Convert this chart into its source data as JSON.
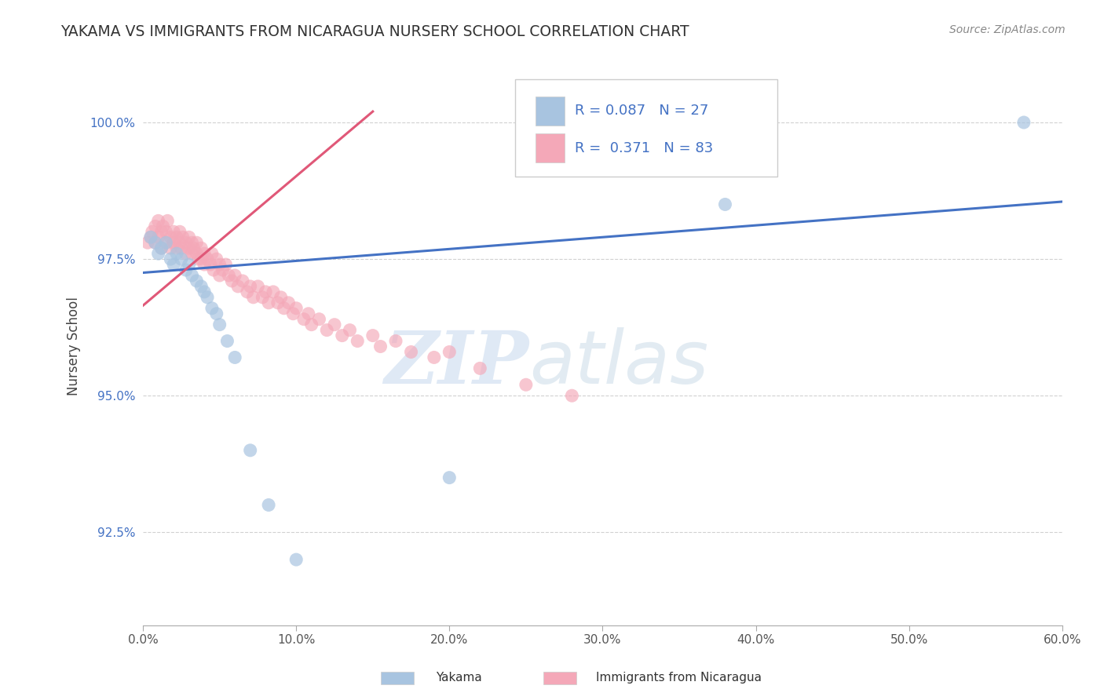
{
  "title": "YAKAMA VS IMMIGRANTS FROM NICARAGUA NURSERY SCHOOL CORRELATION CHART",
  "source": "Source: ZipAtlas.com",
  "ylabel": "Nursery School",
  "legend_label_1": "Yakama",
  "legend_label_2": "Immigrants from Nicaragua",
  "R1": 0.087,
  "N1": 27,
  "R2": 0.371,
  "N2": 83,
  "color1": "#a8c4e0",
  "color2": "#f4a8b8",
  "line_color1": "#4472c4",
  "line_color2": "#e05878",
  "xlim": [
    0.0,
    0.6
  ],
  "ylim": [
    0.908,
    1.01
  ],
  "xticks": [
    0.0,
    0.1,
    0.2,
    0.3,
    0.4,
    0.5,
    0.6
  ],
  "xticklabels": [
    "0.0%",
    "10.0%",
    "20.0%",
    "30.0%",
    "40.0%",
    "50.0%",
    "60.0%"
  ],
  "yticks": [
    0.925,
    0.95,
    0.975,
    1.0
  ],
  "yticklabels": [
    "92.5%",
    "95.0%",
    "97.5%",
    "100.0%"
  ],
  "watermark_zip": "ZIP",
  "watermark_atlas": "atlas",
  "background_color": "#ffffff",
  "scatter1_x": [
    0.005,
    0.008,
    0.01,
    0.012,
    0.015,
    0.018,
    0.02,
    0.022,
    0.025,
    0.028,
    0.03,
    0.032,
    0.035,
    0.038,
    0.04,
    0.042,
    0.045,
    0.048,
    0.05,
    0.055,
    0.06,
    0.07,
    0.082,
    0.1,
    0.2,
    0.38,
    0.575
  ],
  "scatter1_y": [
    0.979,
    0.978,
    0.976,
    0.977,
    0.978,
    0.975,
    0.974,
    0.976,
    0.975,
    0.973,
    0.974,
    0.972,
    0.971,
    0.97,
    0.969,
    0.968,
    0.966,
    0.965,
    0.963,
    0.96,
    0.957,
    0.94,
    0.93,
    0.92,
    0.935,
    0.985,
    1.0
  ],
  "scatter2_x": [
    0.003,
    0.005,
    0.006,
    0.008,
    0.008,
    0.01,
    0.01,
    0.012,
    0.012,
    0.013,
    0.015,
    0.015,
    0.016,
    0.018,
    0.018,
    0.02,
    0.02,
    0.022,
    0.022,
    0.024,
    0.024,
    0.025,
    0.026,
    0.028,
    0.028,
    0.03,
    0.03,
    0.032,
    0.032,
    0.033,
    0.035,
    0.035,
    0.036,
    0.038,
    0.038,
    0.04,
    0.04,
    0.042,
    0.044,
    0.045,
    0.046,
    0.048,
    0.05,
    0.05,
    0.052,
    0.054,
    0.056,
    0.058,
    0.06,
    0.062,
    0.065,
    0.068,
    0.07,
    0.072,
    0.075,
    0.078,
    0.08,
    0.082,
    0.085,
    0.088,
    0.09,
    0.092,
    0.095,
    0.098,
    0.1,
    0.105,
    0.108,
    0.11,
    0.115,
    0.12,
    0.125,
    0.13,
    0.135,
    0.14,
    0.15,
    0.155,
    0.165,
    0.175,
    0.19,
    0.2,
    0.22,
    0.25,
    0.28
  ],
  "scatter2_y": [
    0.978,
    0.979,
    0.98,
    0.981,
    0.978,
    0.982,
    0.979,
    0.98,
    0.977,
    0.981,
    0.98,
    0.978,
    0.982,
    0.979,
    0.977,
    0.98,
    0.978,
    0.979,
    0.977,
    0.98,
    0.978,
    0.977,
    0.979,
    0.978,
    0.976,
    0.979,
    0.977,
    0.978,
    0.976,
    0.977,
    0.978,
    0.976,
    0.975,
    0.977,
    0.975,
    0.976,
    0.974,
    0.975,
    0.974,
    0.976,
    0.973,
    0.975,
    0.974,
    0.972,
    0.973,
    0.974,
    0.972,
    0.971,
    0.972,
    0.97,
    0.971,
    0.969,
    0.97,
    0.968,
    0.97,
    0.968,
    0.969,
    0.967,
    0.969,
    0.967,
    0.968,
    0.966,
    0.967,
    0.965,
    0.966,
    0.964,
    0.965,
    0.963,
    0.964,
    0.962,
    0.963,
    0.961,
    0.962,
    0.96,
    0.961,
    0.959,
    0.96,
    0.958,
    0.957,
    0.958,
    0.955,
    0.952,
    0.95
  ],
  "regline1_x": [
    0.0,
    0.6
  ],
  "regline1_y": [
    0.9725,
    0.9855
  ],
  "regline2_x": [
    0.0,
    0.15
  ],
  "regline2_y": [
    0.9665,
    1.002
  ]
}
